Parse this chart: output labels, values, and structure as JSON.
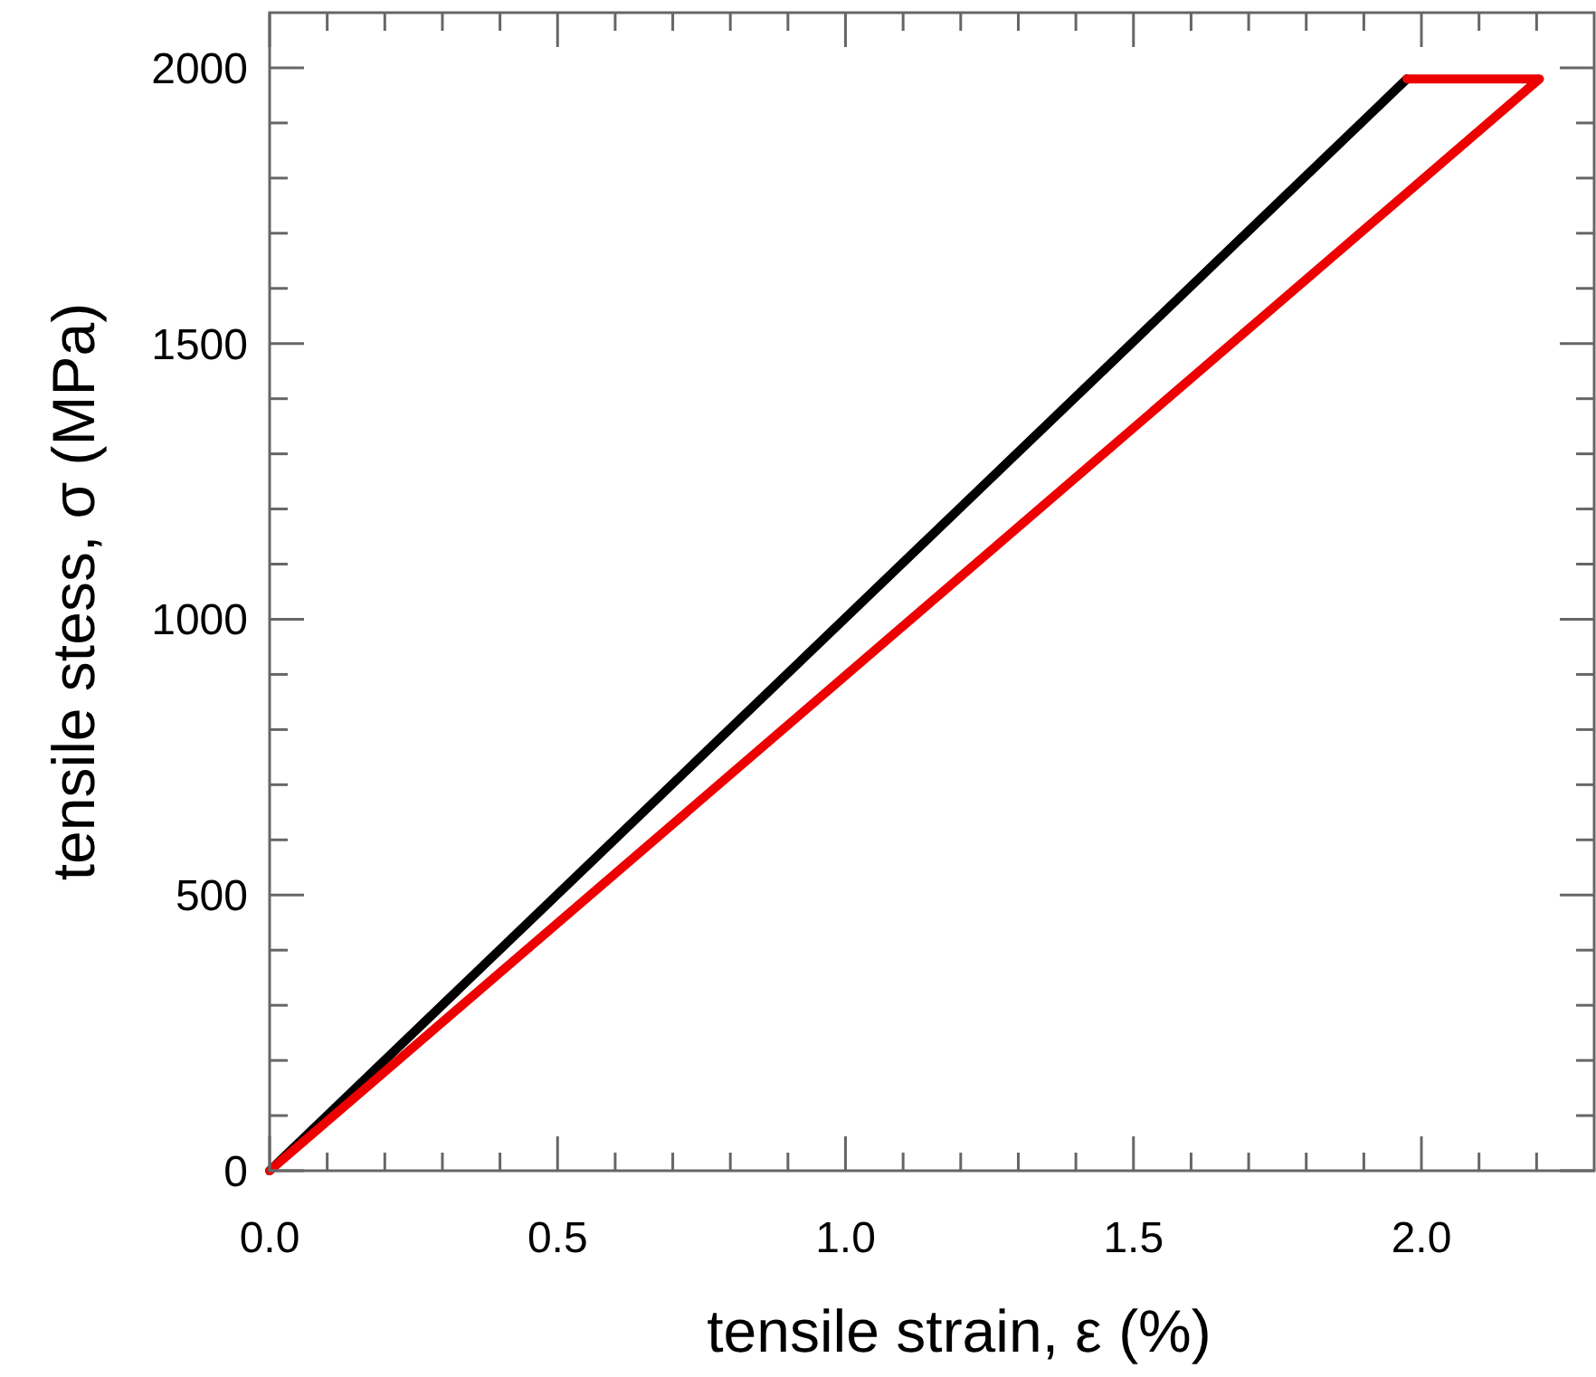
{
  "chart_data": {
    "type": "line",
    "xlabel": "tensile strain, ε (%)",
    "ylabel": "tensile stess, σ (MPa)",
    "xlim": [
      0,
      2.3
    ],
    "ylim": [
      0,
      2100
    ],
    "xticks": [
      {
        "value": 0,
        "label": "0.0"
      },
      {
        "value": 0.1,
        "label": null
      },
      {
        "value": 0.2,
        "label": null
      },
      {
        "value": 0.3,
        "label": null
      },
      {
        "value": 0.4,
        "label": null
      },
      {
        "value": 0.5,
        "label": "0.5"
      },
      {
        "value": 0.6,
        "label": null
      },
      {
        "value": 0.7,
        "label": null
      },
      {
        "value": 0.8,
        "label": null
      },
      {
        "value": 0.9,
        "label": null
      },
      {
        "value": 1,
        "label": "1.0"
      },
      {
        "value": 1.1,
        "label": null
      },
      {
        "value": 1.2,
        "label": null
      },
      {
        "value": 1.3,
        "label": null
      },
      {
        "value": 1.4,
        "label": null
      },
      {
        "value": 1.5,
        "label": "1.5"
      },
      {
        "value": 1.6,
        "label": null
      },
      {
        "value": 1.7,
        "label": null
      },
      {
        "value": 1.8,
        "label": null
      },
      {
        "value": 1.9,
        "label": null
      },
      {
        "value": 2,
        "label": "2.0"
      },
      {
        "value": 2.1,
        "label": null
      },
      {
        "value": 2.2,
        "label": null
      }
    ],
    "yticks": [
      0,
      {
        "value": 100,
        "label": null
      },
      {
        "value": 200,
        "label": null
      },
      {
        "value": 300,
        "label": null
      },
      {
        "value": 400,
        "label": null
      },
      500,
      {
        "value": 600,
        "label": null
      },
      {
        "value": 700,
        "label": null
      },
      {
        "value": 800,
        "label": null
      },
      {
        "value": 900,
        "label": null
      },
      1000,
      {
        "value": 1100,
        "label": null
      },
      {
        "value": 1200,
        "label": null
      },
      {
        "value": 1300,
        "label": null
      },
      {
        "value": 1400,
        "label": null
      },
      1500,
      {
        "value": 1600,
        "label": null
      },
      {
        "value": 1700,
        "label": null
      },
      {
        "value": 1800,
        "label": null
      },
      {
        "value": 1900,
        "label": null
      },
      2000
    ],
    "grid": false,
    "line_style": "solid",
    "series": [
      {
        "color": "#000000",
        "x": [
          0,
          1.975
        ],
        "values": [
          0,
          1980
        ]
      },
      {
        "color": "#ee0000",
        "x": [
          0,
          2.205,
          1.975
        ],
        "values": [
          0,
          1980,
          1980
        ]
      }
    ]
  }
}
